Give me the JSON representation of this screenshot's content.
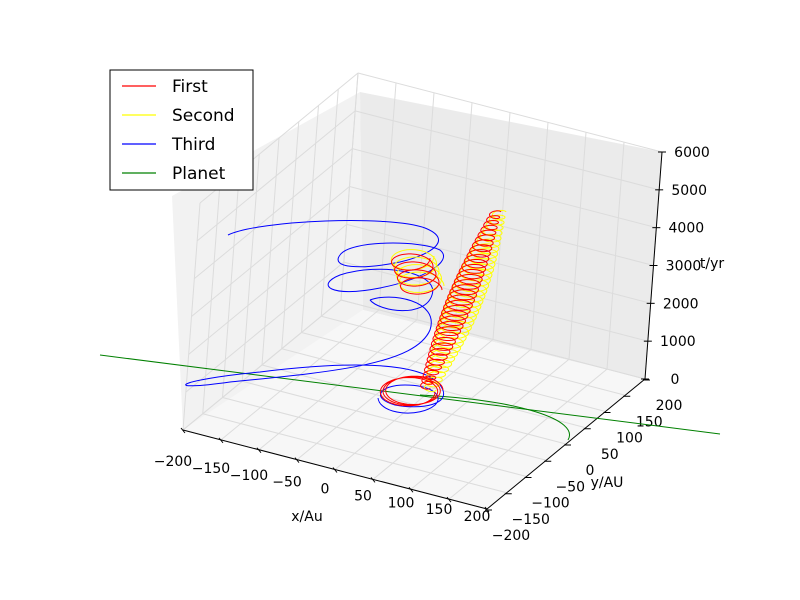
{
  "chart_data": {
    "type": "line",
    "projection": "3d",
    "title": "",
    "xlabel": "x/Au",
    "ylabel": "y/AU",
    "zlabel": "t/yr",
    "xlim": [
      -200,
      200
    ],
    "ylim": [
      -200,
      200
    ],
    "zlim": [
      0,
      6000
    ],
    "x_ticks": [
      "−200",
      "−150",
      "−100",
      "−50",
      "0",
      "50",
      "100",
      "150",
      "200"
    ],
    "y_ticks": [
      "−200",
      "−150",
      "−100",
      "−50",
      "0",
      "50",
      "100",
      "150",
      "200"
    ],
    "z_ticks": [
      "0",
      "1000",
      "2000",
      "3000",
      "4000",
      "5000",
      "6000"
    ],
    "grid": true,
    "legend_position": "top-left",
    "series": [
      {
        "name": "First",
        "color": "#ff0000"
      },
      {
        "name": "Second",
        "color": "#ffff00"
      },
      {
        "name": "Third",
        "color": "#0000ff"
      },
      {
        "name": "Planet",
        "color": "#008000"
      }
    ]
  }
}
